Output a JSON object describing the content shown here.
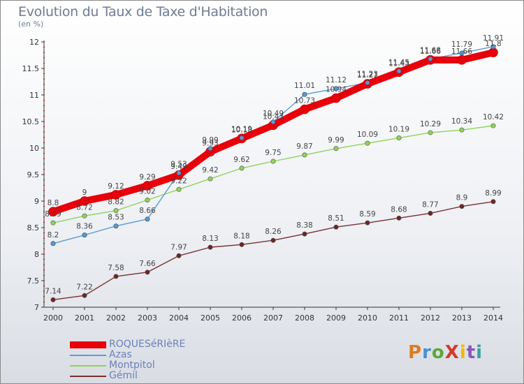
{
  "title": "Evolution du Taux de Taxe d'Habitation",
  "subtitle": "(en %)",
  "logo": {
    "text": "ProXiti",
    "colors": [
      "#e07a1f",
      "#4a8fd0",
      "#5aa83a",
      "#d43a2a",
      "#f0b800",
      "#8a56b8",
      "#3aa0a0"
    ]
  },
  "chart_data": {
    "type": "line",
    "title": "Evolution du Taux de Taxe d'Habitation",
    "ylabel": "(en %)",
    "xlabel": "",
    "x": [
      "2000",
      "2001",
      "2002",
      "2003",
      "2004",
      "2005",
      "2006",
      "2007",
      "2008",
      "2009",
      "2010",
      "2011",
      "2012",
      "2013",
      "2014"
    ],
    "ylim": [
      7,
      12
    ],
    "yticks": [
      "7",
      "7.5",
      "8",
      "8.5",
      "9",
      "9.5",
      "10",
      "10.5",
      "11",
      "11.5",
      "12"
    ],
    "grid": false,
    "legend_position": "bottom-left",
    "series": [
      {
        "name": "ROQUESéRIèRE",
        "color": "#e8000b",
        "values": [
          8.8,
          9,
          9.12,
          9.29,
          9.49,
          9.93,
          10.18,
          10.43,
          10.73,
          10.94,
          11.21,
          11.43,
          11.66,
          11.66,
          11.8
        ],
        "labels": [
          "8.8",
          "9",
          "9.12",
          "9.29",
          "9.49",
          "9.93",
          "10.18",
          "10.43",
          "10.73",
          "10.94",
          "11.21",
          "11.43",
          "11.66",
          "11.66",
          "11.8"
        ]
      },
      {
        "name": "Azas",
        "color": "#5b9bd1",
        "values": [
          8.2,
          8.36,
          8.53,
          8.66,
          9.53,
          9.99,
          10.19,
          10.49,
          11.01,
          11.12,
          11.23,
          11.45,
          11.68,
          11.79,
          11.91
        ],
        "labels": [
          "8.2",
          "8.36",
          "8.53",
          "8.66",
          "9.53",
          "9.99",
          "10.19",
          "10.49",
          "11.01",
          "11.12",
          "11.23",
          "11.45",
          "11.68",
          "11.79",
          "11.91"
        ]
      },
      {
        "name": "Montpitol",
        "color": "#8fd35a",
        "values": [
          8.59,
          8.72,
          8.82,
          9.02,
          9.22,
          9.42,
          9.62,
          9.75,
          9.87,
          9.99,
          10.09,
          10.19,
          10.29,
          10.34,
          10.42
        ],
        "labels": [
          "8.59",
          "8.72",
          "8.82",
          "9.02",
          "9.22",
          "9.42",
          "9.62",
          "9.75",
          "9.87",
          "9.99",
          "10.09",
          "10.19",
          "10.29",
          "10.34",
          "10.42"
        ]
      },
      {
        "name": "Gémil",
        "color": "#7a2f2f",
        "values": [
          7.14,
          7.22,
          7.58,
          7.66,
          7.97,
          8.13,
          8.18,
          8.26,
          8.38,
          8.51,
          8.59,
          8.68,
          8.77,
          8.9,
          8.99
        ],
        "labels": [
          "7.14",
          "7.22",
          "7.58",
          "7.66",
          "7.97",
          "8.13",
          "8.18",
          "8.26",
          "8.38",
          "8.51",
          "8.59",
          "8.68",
          "8.77",
          "8.9",
          "8.99"
        ]
      }
    ]
  }
}
